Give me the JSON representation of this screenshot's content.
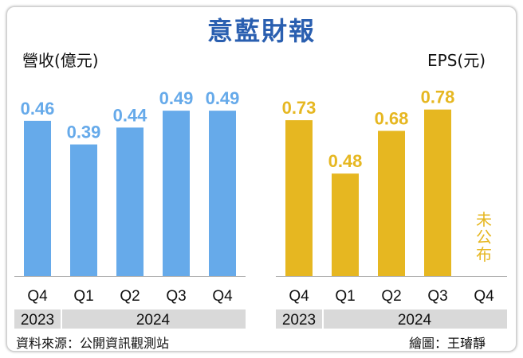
{
  "title": "意藍財報",
  "source": "資料來源：公開資訊觀測站",
  "credit": "繪圖：王璿靜",
  "colors": {
    "left": "#66aaea",
    "right": "#e6b721",
    "title": "#2a5fb0",
    "year_band": "#d9d9d9"
  },
  "chart_data": [
    {
      "type": "bar",
      "ylabel": "營收(億元)",
      "categories": [
        "Q4",
        "Q1",
        "Q2",
        "Q3",
        "Q4"
      ],
      "years": [
        {
          "label": "2023",
          "span": 1
        },
        {
          "label": "2024",
          "span": 4
        }
      ],
      "values": [
        0.46,
        0.39,
        0.44,
        0.49,
        0.49
      ],
      "value_labels": [
        "0.46",
        "0.39",
        "0.44",
        "0.49",
        "0.49"
      ],
      "ylim": [
        0,
        0.62
      ]
    },
    {
      "type": "bar",
      "ylabel": "EPS(元)",
      "categories": [
        "Q4",
        "Q1",
        "Q2",
        "Q3",
        "Q4"
      ],
      "years": [
        {
          "label": "2023",
          "span": 1
        },
        {
          "label": "2024",
          "span": 4
        }
      ],
      "values": [
        0.73,
        0.48,
        0.68,
        0.78,
        null
      ],
      "value_labels": [
        "0.73",
        "0.48",
        "0.68",
        "0.78",
        ""
      ],
      "missing_note": "未公布",
      "ylim": [
        0,
        0.98
      ]
    }
  ]
}
